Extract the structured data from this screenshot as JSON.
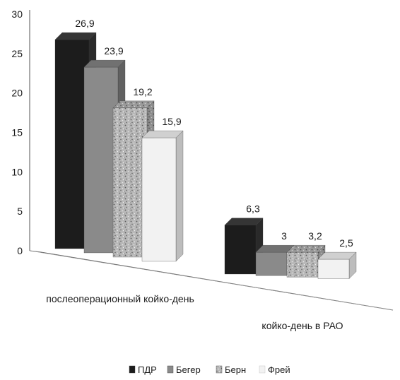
{
  "chart_data": {
    "type": "bar",
    "subtype": "3d-clustered-column",
    "categories": [
      "послеоперационный койко-день",
      "койко-день в РАО"
    ],
    "series": [
      {
        "name": "ПДР",
        "values": [
          26.9,
          6.3
        ],
        "labels": [
          "26,9",
          "6,3"
        ],
        "color": "#1c1c1c",
        "pattern": "solid"
      },
      {
        "name": "Бегер",
        "values": [
          23.9,
          3
        ],
        "labels": [
          "23,9",
          "3"
        ],
        "color": "#8a8a8a",
        "pattern": "solid"
      },
      {
        "name": "Берн",
        "values": [
          19.2,
          3.2
        ],
        "labels": [
          "19,2",
          "3,2"
        ],
        "color": "#b4b4b4",
        "pattern": "speckled"
      },
      {
        "name": "Фрей",
        "values": [
          15.9,
          2.5
        ],
        "labels": [
          "15,9",
          "2,5"
        ],
        "color": "#f2f2f2",
        "pattern": "solid"
      }
    ],
    "ylim": [
      0,
      30
    ],
    "y_ticks": [
      "0",
      "5",
      "10",
      "15",
      "20",
      "25",
      "30"
    ],
    "title": "",
    "xlabel": "",
    "ylabel": "",
    "grid": false,
    "legend_position": "bottom"
  }
}
